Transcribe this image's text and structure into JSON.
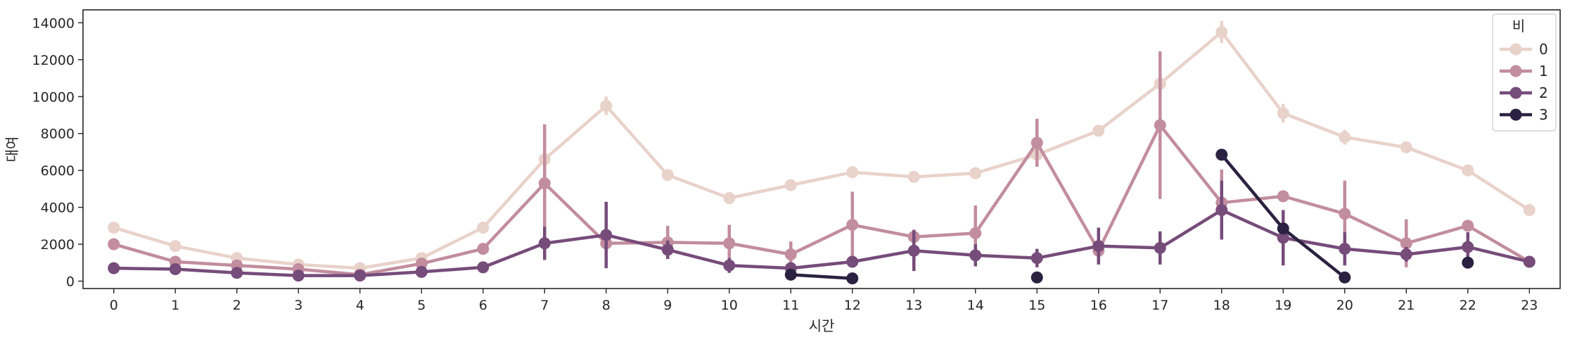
{
  "chart_data": {
    "type": "line",
    "title": "",
    "xlabel": "시간",
    "ylabel": "대여",
    "categories": [
      "0",
      "1",
      "2",
      "3",
      "4",
      "5",
      "6",
      "7",
      "8",
      "9",
      "10",
      "11",
      "12",
      "13",
      "14",
      "15",
      "16",
      "17",
      "18",
      "19",
      "20",
      "21",
      "22",
      "23"
    ],
    "yticks": [
      0,
      2000,
      4000,
      6000,
      8000,
      10000,
      12000,
      14000
    ],
    "ylim": [
      -400,
      14700
    ],
    "grid": false,
    "legend": {
      "title": "비",
      "placement": "top-right"
    },
    "series": [
      {
        "name": "0",
        "color": "#e8d2ca",
        "values": [
          2900,
          1900,
          1250,
          900,
          700,
          1250,
          2900,
          6600,
          9500,
          5750,
          4500,
          5200,
          5900,
          5650,
          5850,
          6850,
          8150,
          10700,
          13500,
          9100,
          7800,
          7250,
          6000,
          3850
        ],
        "err": [
          150,
          100,
          80,
          60,
          60,
          100,
          150,
          300,
          500,
          150,
          150,
          150,
          150,
          150,
          150,
          200,
          300,
          400,
          600,
          500,
          400,
          300,
          200,
          150
        ]
      },
      {
        "name": "1",
        "color": "#c28d9e",
        "values": [
          2000,
          1050,
          850,
          650,
          350,
          950,
          1750,
          5300,
          2050,
          2100,
          2050,
          1450,
          3050,
          2400,
          2600,
          7500,
          1650,
          8450,
          4250,
          4600,
          3650,
          2050,
          3000,
          1050
        ],
        "err": [
          150,
          100,
          100,
          80,
          60,
          100,
          300,
          3200,
          600,
          900,
          1000,
          700,
          1800,
          400,
          1500,
          1300,
          300,
          4000,
          1800,
          100,
          1800,
          1300,
          150,
          200
        ]
      },
      {
        "name": "2",
        "color": "#764c7a",
        "values": [
          700,
          650,
          450,
          300,
          300,
          500,
          750,
          2050,
          2500,
          1700,
          850,
          700,
          1050,
          1650,
          1400,
          1250,
          1900,
          1800,
          3850,
          2350,
          1750,
          1450,
          1850,
          1050
        ],
        "err": [
          200,
          100,
          100,
          50,
          50,
          100,
          150,
          900,
          1800,
          500,
          400,
          200,
          300,
          1100,
          600,
          500,
          1000,
          900,
          1600,
          1500,
          900,
          400,
          800,
          300
        ]
      },
      {
        "name": "3",
        "color": "#2b2140",
        "values": [
          null,
          null,
          null,
          null,
          null,
          null,
          null,
          null,
          null,
          null,
          null,
          350,
          150,
          null,
          null,
          200,
          null,
          null,
          6850,
          2850,
          200,
          null,
          1000,
          null
        ],
        "err": [
          null,
          null,
          null,
          null,
          null,
          null,
          null,
          null,
          null,
          null,
          null,
          0,
          0,
          null,
          null,
          0,
          null,
          null,
          0,
          0,
          0,
          null,
          0,
          null
        ]
      }
    ]
  }
}
